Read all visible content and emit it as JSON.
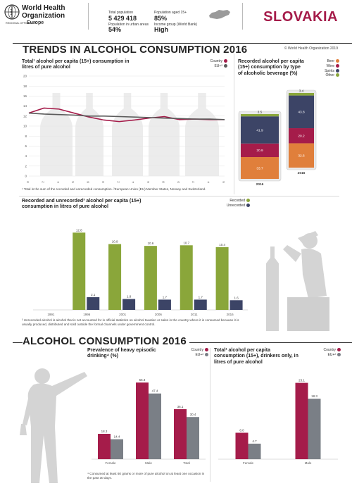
{
  "header": {
    "org_line1": "World Health",
    "org_line2": "Organization",
    "region_office": "REGIONAL OFFICE FOR",
    "region": "Europe",
    "total_population_label": "Total population",
    "total_population": "5 429 418",
    "urban_label": "Population in urban areas",
    "urban": "54%",
    "aged15_label": "Population aged 15+",
    "aged15": "85%",
    "income_label": "Income group (World Bank)",
    "income": "High",
    "country": "SLOVAKIA",
    "copyright": "© World Health Organization 2019"
  },
  "trends": {
    "section_title": "TRENDS IN ALCOHOL CONSUMPTION 2016",
    "panel_title": "Total¹ alcohol per capita (15+) consumption in litres of pure alcohol",
    "legend_country": "Country",
    "legend_eu": "EU+²",
    "footnote": "¹ Total is the sum of the recorded and unrecorded consumption. ²European Union (EU) Member States, Norway and Switzerland.",
    "colors": {
      "country": "#a51c4a",
      "eu": "#5b5b5b"
    }
  },
  "beverage": {
    "panel_title": "Recorded alcohol per capita (15+) consumption by type of alcoholic beverage (%)",
    "legend": [
      "Beer",
      "Wine",
      "Spirits",
      "Other"
    ],
    "colors": {
      "beer": "#e07f3b",
      "wine": "#a51c4a",
      "spirits": "#3c4466",
      "other": "#8aa63a"
    }
  },
  "recorded": {
    "panel_title": "Recorded and unrecorded³ alcohol per capita (15+) consumption in litres of pure alcohol",
    "legend_recorded": "Recorded",
    "legend_unrecorded": "Unrecorded",
    "footnote": "³ Unrecorded alcohol is alcohol that is not accounted for in official statistics on alcohol taxation or sales in the country where it is consumed because it is usually produced, distributed and sold outside the formal channels under government control."
  },
  "consumption": {
    "section_title": "ALCOHOL CONSUMPTION 2016",
    "hed_title": "Prevalence of heavy episodic drinking⁴ (%)",
    "hed_footnote": "⁴ Consumed at least 60 grams or more of pure alcohol on at least one occasion in the past 30 days.",
    "drinkers_title": "Total¹ alcohol per capita consumption (15+), drinkers only, in litres of pure alcohol",
    "legend_country": "Country",
    "legend_eu": "EU+²"
  },
  "chart_data": [
    {
      "type": "line",
      "title": "Total¹ alcohol per capita (15+) consumption in litres of pure alcohol",
      "x": [
        1990,
        1992,
        1994,
        1996,
        1998,
        2000,
        2002,
        2004,
        2006,
        2008,
        2010,
        2012,
        2014,
        2016
      ],
      "y_ticks": [
        0,
        2,
        4,
        6,
        8,
        10,
        12,
        14,
        16,
        18,
        20
      ],
      "ylim": [
        0,
        20
      ],
      "series": [
        {
          "name": "Country",
          "values": [
            12.6,
            13.6,
            13.4,
            12.6,
            11.8,
            11.2,
            10.9,
            11.2,
            11.6,
            11.9,
            11.3,
            11.4,
            11.3,
            11.3
          ]
        },
        {
          "name": "EU+",
          "values": [
            12.6,
            12.4,
            12.3,
            12.2,
            12.0,
            12.0,
            11.9,
            11.8,
            11.7,
            11.6,
            11.5,
            11.4,
            11.4,
            11.3
          ]
        }
      ],
      "legend": "top-right"
    },
    {
      "type": "bar",
      "stacked": true,
      "title": "Recorded alcohol per capita (15+) consumption by type of alcoholic beverage (%)",
      "categories": [
        "Slovakia 2016",
        "EU+ 2016"
      ],
      "category_labels": [
        "2016",
        "2016"
      ],
      "series": [
        {
          "name": "Beer",
          "values": [
            33.7,
            32.6
          ]
        },
        {
          "name": "Wine",
          "values": [
            20.9,
            20.2
          ]
        },
        {
          "name": "Spirits",
          "values": [
            41.9,
            43.8
          ]
        },
        {
          "name": "Other",
          "values": [
            3.5,
            3.4
          ]
        }
      ],
      "legend": "top-right"
    },
    {
      "type": "bar",
      "title": "Recorded and unrecorded³ alcohol per capita (15+) consumption in litres of pure alcohol",
      "categories": [
        "1991",
        "1996",
        "2001",
        "2006",
        "2011",
        "2016"
      ],
      "series": [
        {
          "name": "Recorded",
          "values": [
            null,
            12.8,
            10.9,
            10.6,
            10.7,
            10.4
          ]
        },
        {
          "name": "Unrecorded",
          "values": [
            null,
            2.1,
            1.8,
            1.7,
            1.7,
            1.6
          ]
        }
      ],
      "legend": "top-right"
    },
    {
      "type": "bar",
      "title": "Prevalence of heavy episodic drinking⁴ (%)",
      "categories": [
        "Female",
        "Male",
        "Total"
      ],
      "series": [
        {
          "name": "Country",
          "values": [
            18.3,
            55.3,
            36.1
          ]
        },
        {
          "name": "EU+",
          "values": [
            14.4,
            47.4,
            30.4
          ]
        }
      ],
      "legend": "top-right"
    },
    {
      "type": "bar",
      "title": "Total¹ alcohol per capita consumption (15+), drinkers only, in litres of pure alcohol",
      "categories": [
        "Female",
        "Male"
      ],
      "series": [
        {
          "name": "Country",
          "values": [
            8.0,
            23.1
          ]
        },
        {
          "name": "EU+",
          "values": [
            4.7,
            18.3
          ]
        }
      ],
      "legend": "top-right"
    }
  ]
}
